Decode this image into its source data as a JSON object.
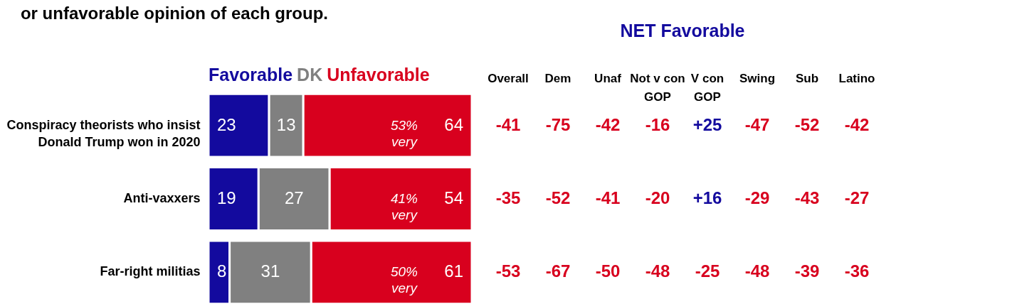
{
  "chart_data": [
    {
      "type": "bar",
      "orientation": "horizontal",
      "stacked": true,
      "title": "or unfavorable opinion of each group.",
      "categories": [
        "Conspiracy theorists who insist Donald Trump won in 2020",
        "Anti-vaxxers",
        "Far-right militias"
      ],
      "series": [
        {
          "name": "Favorable",
          "color": "#130a9e",
          "values": [
            23,
            19,
            8
          ]
        },
        {
          "name": "DK",
          "color": "#808080",
          "values": [
            13,
            27,
            31
          ]
        },
        {
          "name": "Unfavorable",
          "color": "#d8001e",
          "values": [
            64,
            54,
            61
          ]
        }
      ],
      "data_labels": true,
      "annotations": [
        "53% very",
        "41% very",
        "50% very"
      ]
    },
    {
      "type": "other",
      "title": "NET Favorable",
      "categories": [
        "Overall",
        "Dem",
        "Unaf",
        "Not v con GOP",
        "V con GOP",
        "Swing",
        "Sub",
        "Latino"
      ],
      "cell_labels": [
        [
          "-41",
          "-75",
          "-42",
          "-16",
          "+25",
          "-47",
          "-52",
          "-42"
        ],
        [
          "-35",
          "-52",
          "-41",
          "-20",
          "+16",
          "-29",
          "-43",
          "-27"
        ],
        [
          "-53",
          "-67",
          "-50",
          "-48",
          "-25",
          "-48",
          "-39",
          "-36"
        ]
      ]
    }
  ]
}
